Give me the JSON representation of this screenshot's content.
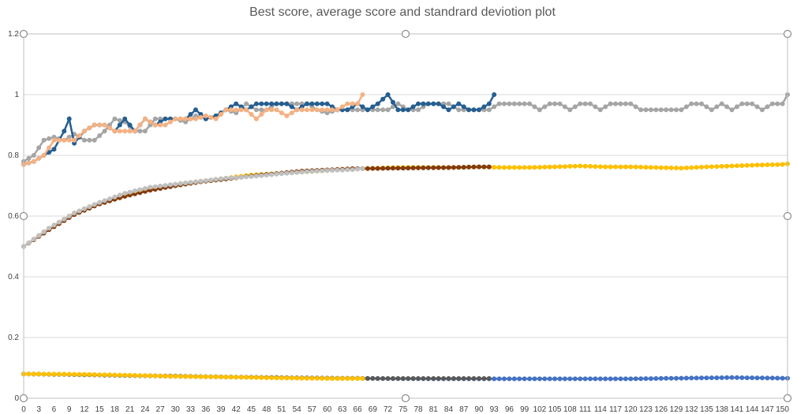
{
  "chart_data": {
    "type": "line",
    "title": "Best score, average score and standrard deviotion plot",
    "xlabel": "",
    "ylabel": "",
    "xlim": [
      0,
      151
    ],
    "ylim": [
      0,
      1.2
    ],
    "y_ticks": [
      "0",
      "0.2",
      "0.4",
      "0.6",
      "0.8",
      "1",
      "1.2"
    ],
    "x_ticks": [
      "0",
      "3",
      "6",
      "9",
      "12",
      "15",
      "18",
      "21",
      "24",
      "27",
      "30",
      "33",
      "36",
      "39",
      "42",
      "45",
      "48",
      "51",
      "54",
      "57",
      "60",
      "63",
      "66",
      "69",
      "72",
      "75",
      "78",
      "81",
      "84",
      "87",
      "90",
      "93",
      "96",
      "99",
      "102",
      "105",
      "108",
      "111",
      "114",
      "117",
      "120",
      "123",
      "126",
      "129",
      "132",
      "135",
      "138",
      "141",
      "144",
      "147",
      "150"
    ],
    "grid": "horizontal",
    "legend": "none",
    "series": [
      {
        "color": "#A5A5A5",
        "x": [
          0,
          2,
          4,
          6,
          8,
          10,
          12,
          14,
          16,
          18,
          20,
          22,
          24,
          26,
          28,
          30,
          32,
          34,
          36,
          38,
          40,
          42,
          44,
          46,
          48,
          50,
          52,
          54,
          56,
          58,
          60,
          62,
          64,
          66,
          68,
          70,
          72,
          74,
          76,
          78,
          80,
          82,
          84,
          86,
          88,
          90,
          92,
          94,
          96,
          98,
          100,
          102,
          104,
          106,
          108,
          110,
          112,
          114,
          116,
          118,
          120,
          122,
          124,
          126,
          128,
          130,
          132,
          134,
          136,
          138,
          140,
          142,
          144,
          146,
          148,
          150,
          151
        ],
        "y": [
          0.78,
          0.8,
          0.85,
          0.86,
          0.85,
          0.87,
          0.85,
          0.85,
          0.88,
          0.92,
          0.91,
          0.88,
          0.88,
          0.92,
          0.92,
          0.92,
          0.91,
          0.93,
          0.92,
          0.93,
          0.95,
          0.94,
          0.97,
          0.95,
          0.95,
          0.97,
          0.97,
          0.97,
          0.97,
          0.95,
          0.94,
          0.95,
          0.95,
          0.95,
          0.95,
          0.95,
          0.95,
          0.97,
          0.95,
          0.95,
          0.97,
          0.97,
          0.97,
          0.95,
          0.95,
          0.95,
          0.95,
          0.97,
          0.97,
          0.97,
          0.97,
          0.95,
          0.97,
          0.97,
          0.95,
          0.97,
          0.97,
          0.95,
          0.97,
          0.97,
          0.97,
          0.95,
          0.95,
          0.95,
          0.95,
          0.95,
          0.97,
          0.97,
          0.95,
          0.97,
          0.95,
          0.97,
          0.97,
          0.95,
          0.97,
          0.97,
          1.0
        ]
      },
      {
        "color": "#255E91",
        "x": [
          0,
          2,
          4,
          6,
          8,
          9,
          10,
          12,
          14,
          16,
          18,
          20,
          22,
          24,
          26,
          28,
          30,
          32,
          34,
          36,
          38,
          40,
          42,
          44,
          46,
          48,
          50,
          52,
          54,
          56,
          58,
          60,
          62,
          64,
          66,
          68,
          70,
          72,
          74,
          76,
          78,
          80,
          82,
          84,
          86,
          88,
          90,
          92,
          93
        ],
        "y": [
          0.77,
          0.78,
          0.8,
          0.82,
          0.88,
          0.92,
          0.84,
          0.88,
          0.9,
          0.9,
          0.88,
          0.92,
          0.88,
          0.92,
          0.9,
          0.92,
          0.92,
          0.92,
          0.95,
          0.92,
          0.93,
          0.95,
          0.97,
          0.95,
          0.97,
          0.97,
          0.97,
          0.97,
          0.95,
          0.97,
          0.97,
          0.97,
          0.95,
          0.95,
          0.97,
          0.95,
          0.97,
          1.0,
          0.95,
          0.95,
          0.97,
          0.97,
          0.97,
          0.95,
          0.97,
          0.95,
          0.95,
          0.97,
          1.0
        ]
      },
      {
        "color": "#F4B183",
        "x": [
          0,
          2,
          4,
          6,
          8,
          10,
          12,
          14,
          16,
          18,
          20,
          22,
          24,
          26,
          28,
          30,
          32,
          34,
          36,
          38,
          40,
          42,
          44,
          46,
          48,
          50,
          52,
          54,
          56,
          58,
          60,
          62,
          64,
          66,
          67
        ],
        "y": [
          0.77,
          0.78,
          0.8,
          0.85,
          0.85,
          0.85,
          0.88,
          0.9,
          0.9,
          0.88,
          0.88,
          0.88,
          0.92,
          0.9,
          0.9,
          0.92,
          0.92,
          0.92,
          0.93,
          0.92,
          0.95,
          0.95,
          0.95,
          0.92,
          0.95,
          0.95,
          0.93,
          0.95,
          0.95,
          0.95,
          0.95,
          0.95,
          0.97,
          0.97,
          1.0
        ]
      },
      {
        "color": "#FFC000",
        "x": [
          0,
          5,
          10,
          15,
          20,
          25,
          30,
          35,
          40,
          45,
          50,
          55,
          60,
          65,
          70,
          75,
          80,
          85,
          90,
          95,
          100,
          105,
          110,
          115,
          120,
          125,
          130,
          135,
          140,
          145,
          150,
          151
        ],
        "y": [
          0.5,
          0.56,
          0.61,
          0.645,
          0.67,
          0.69,
          0.705,
          0.715,
          0.725,
          0.735,
          0.74,
          0.745,
          0.75,
          0.755,
          0.758,
          0.76,
          0.76,
          0.76,
          0.762,
          0.76,
          0.76,
          0.762,
          0.765,
          0.762,
          0.762,
          0.76,
          0.758,
          0.762,
          0.765,
          0.768,
          0.77,
          0.772
        ]
      },
      {
        "color": "#843C0C",
        "x": [
          0,
          5,
          10,
          15,
          20,
          25,
          30,
          35,
          40,
          45,
          50,
          55,
          60,
          65,
          70,
          75,
          80,
          85,
          90,
          92
        ],
        "y": [
          0.5,
          0.555,
          0.605,
          0.64,
          0.665,
          0.685,
          0.7,
          0.713,
          0.722,
          0.732,
          0.74,
          0.748,
          0.752,
          0.756,
          0.757,
          0.758,
          0.759,
          0.76,
          0.762,
          0.762
        ]
      },
      {
        "color": "#C0C0C0",
        "x": [
          0,
          5,
          10,
          15,
          20,
          25,
          30,
          35,
          40,
          45,
          50,
          55,
          60,
          65,
          67
        ],
        "y": [
          0.5,
          0.56,
          0.61,
          0.645,
          0.675,
          0.695,
          0.705,
          0.715,
          0.725,
          0.73,
          0.738,
          0.745,
          0.75,
          0.753,
          0.756
        ]
      },
      {
        "color": "#4472C4",
        "x": [
          0,
          10,
          20,
          30,
          40,
          50,
          60,
          70,
          80,
          90,
          100,
          110,
          120,
          130,
          140,
          150,
          151
        ],
        "y": [
          0.08,
          0.078,
          0.075,
          0.072,
          0.07,
          0.068,
          0.066,
          0.065,
          0.064,
          0.064,
          0.064,
          0.064,
          0.064,
          0.066,
          0.068,
          0.066,
          0.066
        ]
      },
      {
        "color": "#595959",
        "x": [
          0,
          10,
          20,
          30,
          40,
          50,
          60,
          70,
          80,
          90,
          92
        ],
        "y": [
          0.08,
          0.078,
          0.075,
          0.073,
          0.07,
          0.068,
          0.066,
          0.065,
          0.065,
          0.065,
          0.065
        ]
      },
      {
        "color": "#FFC000",
        "x": [
          0,
          10,
          20,
          30,
          40,
          50,
          60,
          67
        ],
        "y": [
          0.08,
          0.079,
          0.076,
          0.072,
          0.07,
          0.067,
          0.065,
          0.065
        ]
      }
    ]
  }
}
